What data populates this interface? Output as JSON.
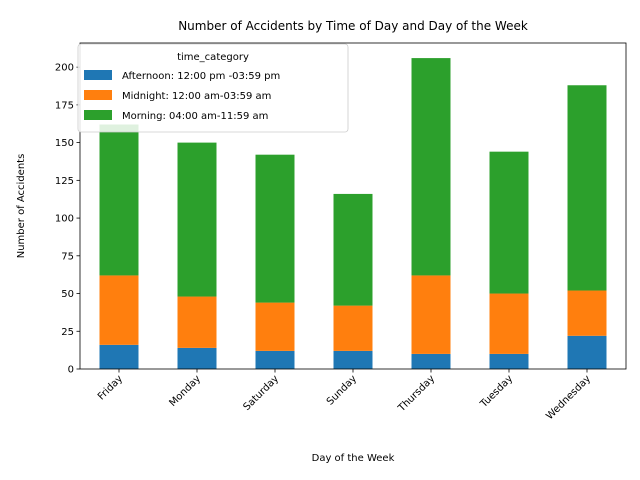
{
  "chart_data": {
    "type": "bar",
    "stacked": true,
    "title": "Number of Accidents by Time of Day and Day of the Week",
    "xlabel": "Day of the Week",
    "ylabel": "Number of Accidents",
    "categories": [
      "Friday",
      "Monday",
      "Saturday",
      "Sunday",
      "Thursday",
      "Tuesday",
      "Wednesday"
    ],
    "yticks": [
      "0",
      "25",
      "50",
      "75",
      "100",
      "125",
      "150",
      "175",
      "200"
    ],
    "ylim": [
      0,
      216
    ],
    "grid": false,
    "legend": {
      "title": "time_category",
      "position": "top-left"
    },
    "series": [
      {
        "name": "Afternoon: 12:00 pm -03:59 pm",
        "color": "#1f77b4",
        "values": [
          16,
          14,
          12,
          12,
          10,
          10,
          22
        ]
      },
      {
        "name": "Midnight: 12:00 am-03:59 am",
        "color": "#ff7f0e",
        "values": [
          46,
          34,
          32,
          30,
          52,
          40,
          30
        ]
      },
      {
        "name": "Morning: 04:00 am-11:59 am",
        "color": "#2ca02c",
        "values": [
          100,
          102,
          98,
          74,
          144,
          94,
          136
        ]
      }
    ]
  }
}
